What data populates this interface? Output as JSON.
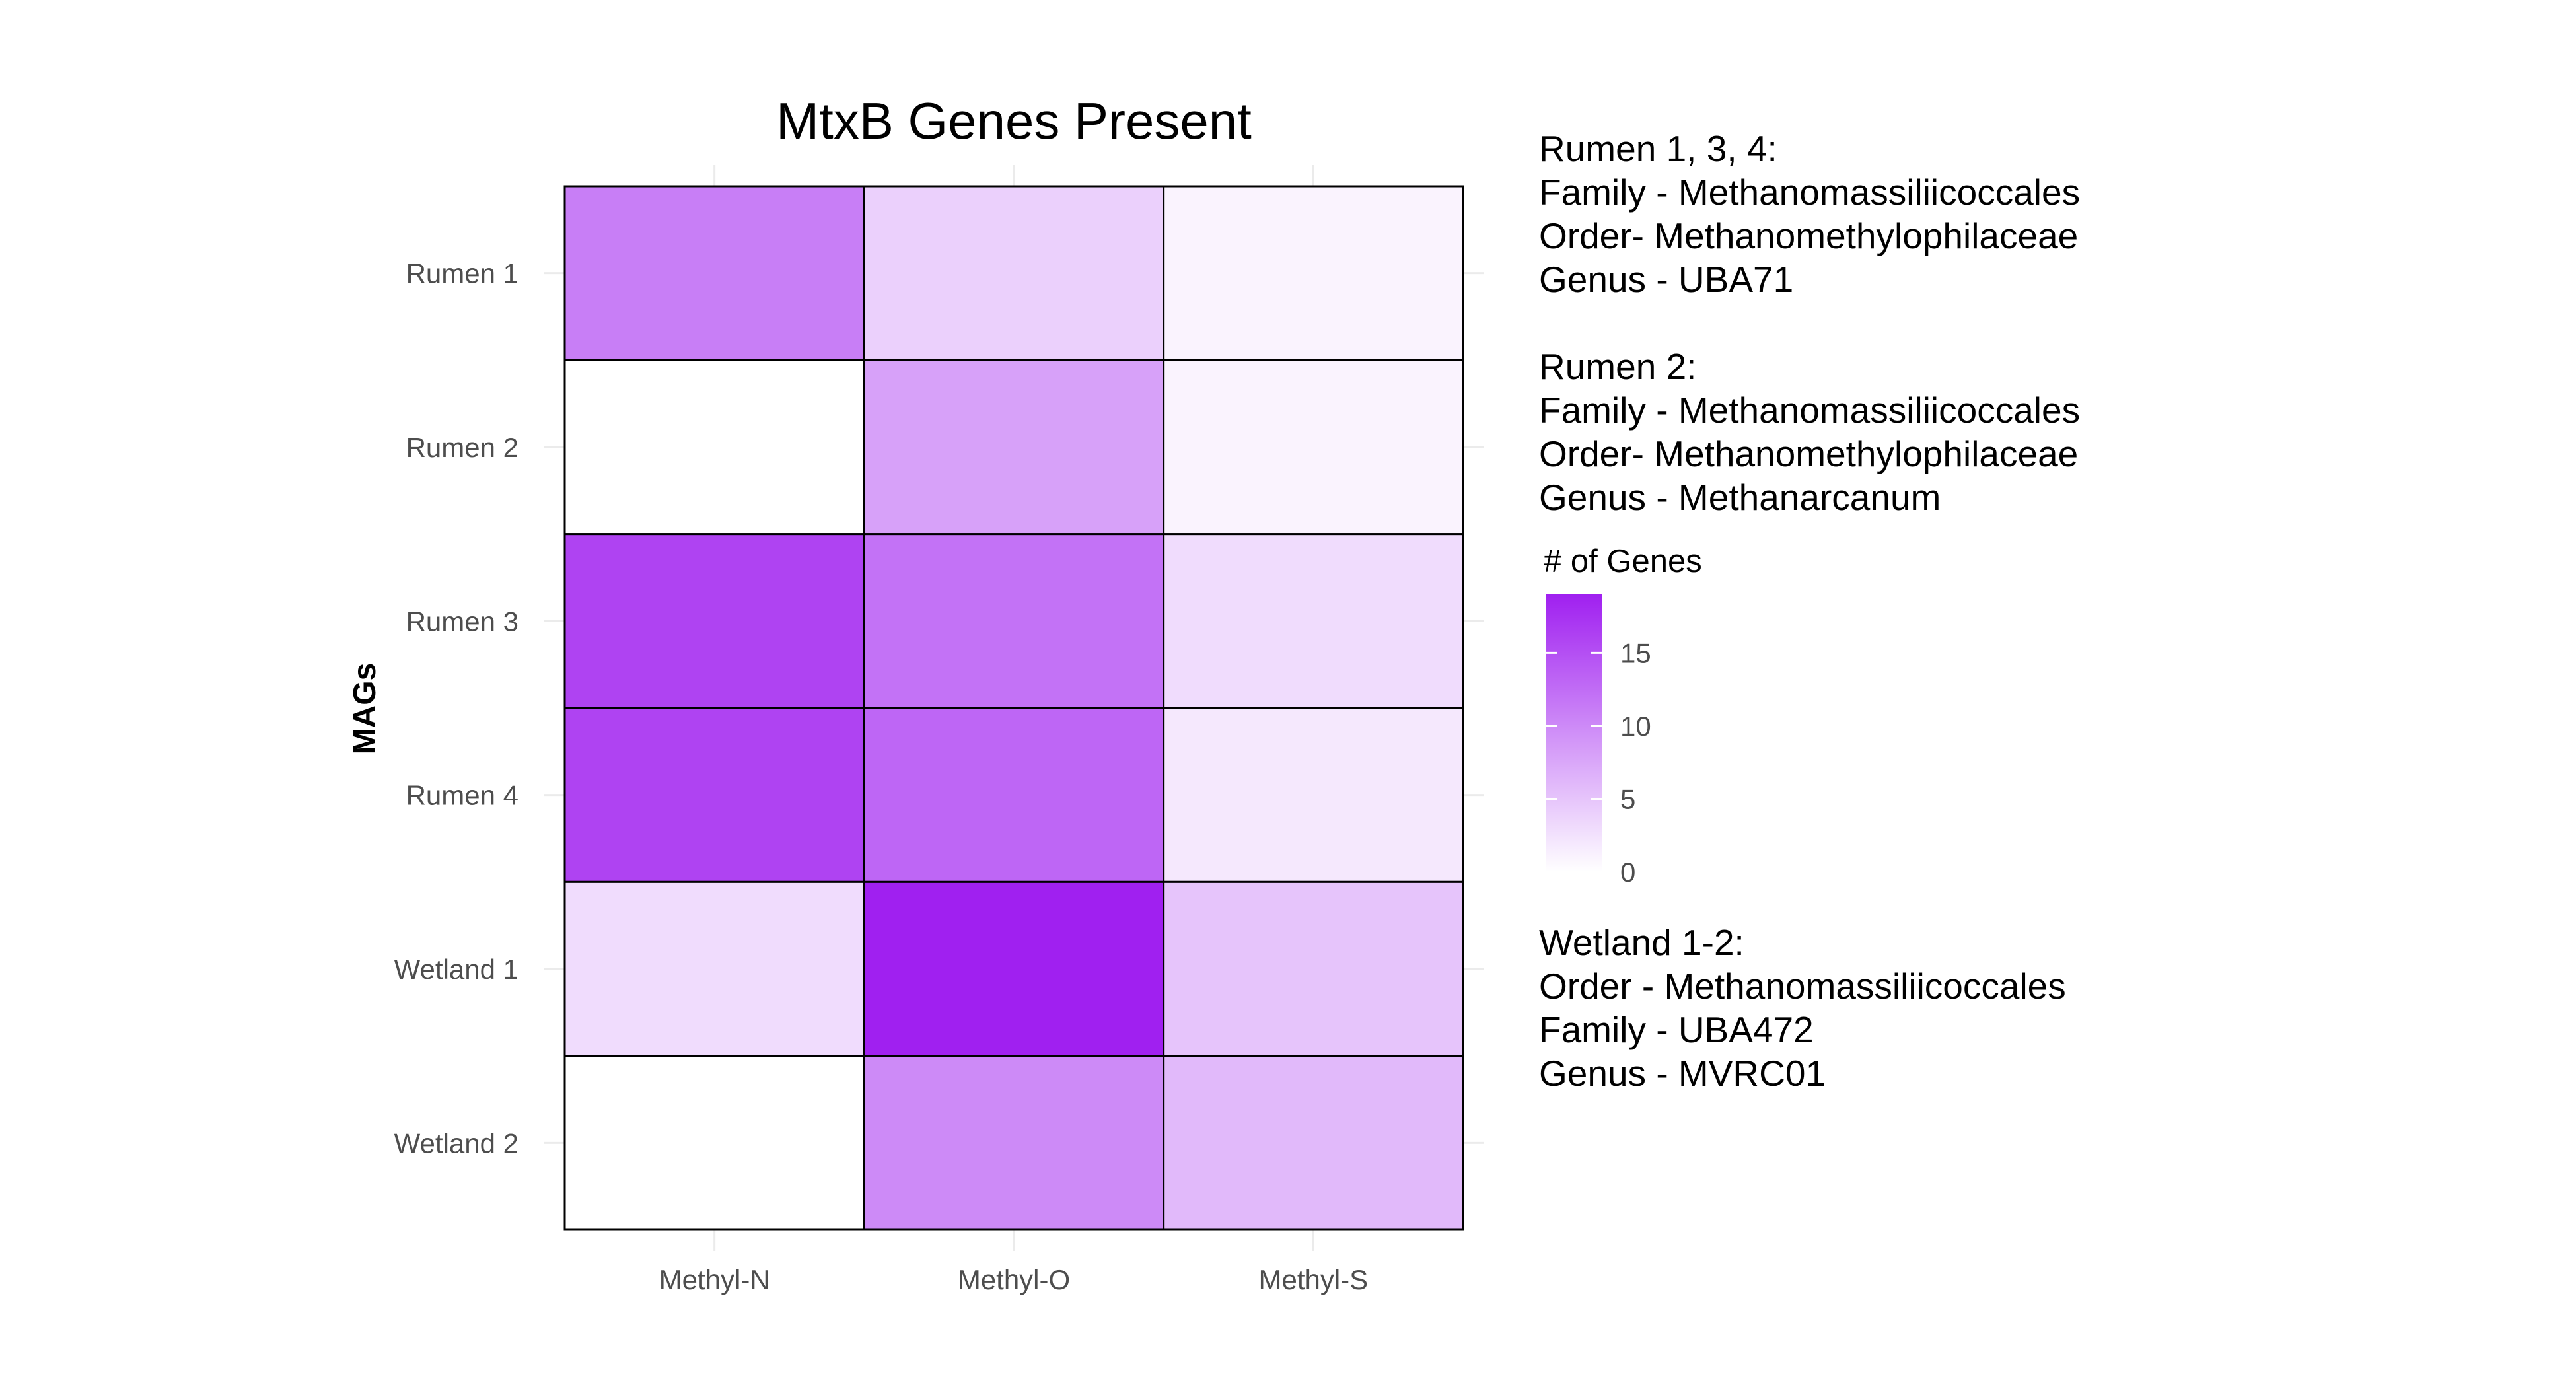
{
  "chart_data": {
    "type": "heatmap",
    "title": "MtxB Genes Present",
    "xlabel": "",
    "ylabel": "MAGs",
    "x": [
      "Methyl-N",
      "Methyl-O",
      "Methyl-S"
    ],
    "y": [
      "Rumen 1",
      "Rumen 2",
      "Rumen 3",
      "Rumen 4",
      "Wetland 1",
      "Wetland 2"
    ],
    "values": [
      [
        11,
        4,
        1
      ],
      [
        0,
        8,
        1
      ],
      [
        16,
        12,
        3
      ],
      [
        16,
        13,
        2
      ],
      [
        3,
        19,
        5
      ],
      [
        0,
        10,
        6
      ]
    ],
    "legend": {
      "title": "# of Genes",
      "ticks": [
        "15",
        "10",
        "5",
        "0"
      ],
      "tick_values": [
        15,
        10,
        5,
        0
      ],
      "range": [
        0,
        19
      ],
      "low_color": "#ffffff",
      "high_color": "#a020f0",
      "placement": "right"
    },
    "grid": true
  },
  "annotations": {
    "rumen134": [
      "Rumen 1, 3, 4:",
      "Family - Methanomassiliicoccales",
      "Order- Methanomethylophilaceae",
      "Genus - UBA71"
    ],
    "rumen2": [
      "Rumen 2:",
      "Family - Methanomassiliicoccales",
      "Order- Methanomethylophilaceae",
      "Genus - Methanarcanum"
    ],
    "wetland": [
      "Wetland 1-2:",
      "Order - Methanomassiliicoccales",
      "Family - UBA472",
      "Genus - MVRC01"
    ]
  }
}
